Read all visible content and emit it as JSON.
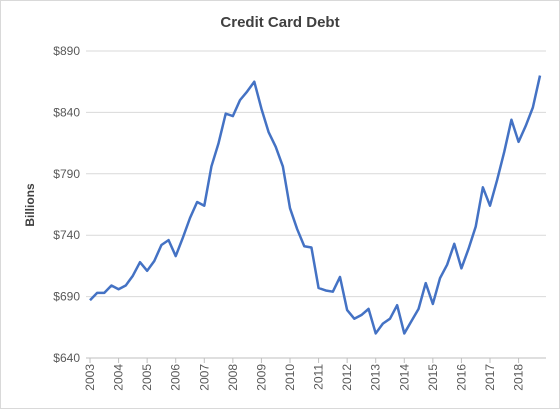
{
  "chart_data": {
    "type": "line",
    "title": "Credit Card Debt",
    "y_label": "Billions",
    "x": [
      2003,
      2003.25,
      2003.5,
      2003.75,
      2004,
      2004.25,
      2004.5,
      2004.75,
      2005,
      2005.25,
      2005.5,
      2005.75,
      2006,
      2006.25,
      2006.5,
      2006.75,
      2007,
      2007.25,
      2007.5,
      2007.75,
      2008,
      2008.25,
      2008.5,
      2008.75,
      2009,
      2009.25,
      2009.5,
      2009.75,
      2010,
      2010.25,
      2010.5,
      2010.75,
      2011,
      2011.25,
      2011.5,
      2011.75,
      2012,
      2012.25,
      2012.5,
      2012.75,
      2013,
      2013.25,
      2013.5,
      2013.75,
      2014,
      2014.25,
      2014.5,
      2014.75,
      2015,
      2015.25,
      2015.5,
      2015.75,
      2016,
      2016.25,
      2016.5,
      2016.75,
      2017,
      2017.25,
      2017.5,
      2017.75,
      2018,
      2018.25,
      2018.5,
      2018.75
    ],
    "series": [
      {
        "name": "Credit Card Debt",
        "color": "#4472c4",
        "values": [
          687,
          693,
          693,
          699,
          696,
          699,
          707,
          718,
          711,
          719,
          732,
          736,
          723,
          738,
          754,
          767,
          764,
          796,
          815,
          839,
          837,
          850,
          857,
          865,
          843,
          824,
          812,
          796,
          762,
          745,
          731,
          730,
          697,
          695,
          694,
          706,
          679,
          672,
          675,
          680,
          660,
          668,
          672,
          683,
          660,
          670,
          680,
          701,
          684,
          705,
          716,
          733,
          713,
          729,
          747,
          779,
          764,
          785,
          808,
          834,
          816,
          829,
          844,
          870
        ]
      }
    ],
    "xlim": [
      2003,
      2018.75
    ],
    "xticks": [
      2003,
      2004,
      2005,
      2006,
      2007,
      2008,
      2009,
      2010,
      2011,
      2012,
      2013,
      2014,
      2015,
      2016,
      2017,
      2018
    ],
    "ylim": [
      640,
      890
    ],
    "yticks": [
      {
        "value": 640,
        "label": "$640"
      },
      {
        "value": 690,
        "label": "$690"
      },
      {
        "value": 740,
        "label": "$740"
      },
      {
        "value": 790,
        "label": "$790"
      },
      {
        "value": 840,
        "label": "$840"
      },
      {
        "value": 890,
        "label": "$890"
      }
    ],
    "grid": true
  }
}
